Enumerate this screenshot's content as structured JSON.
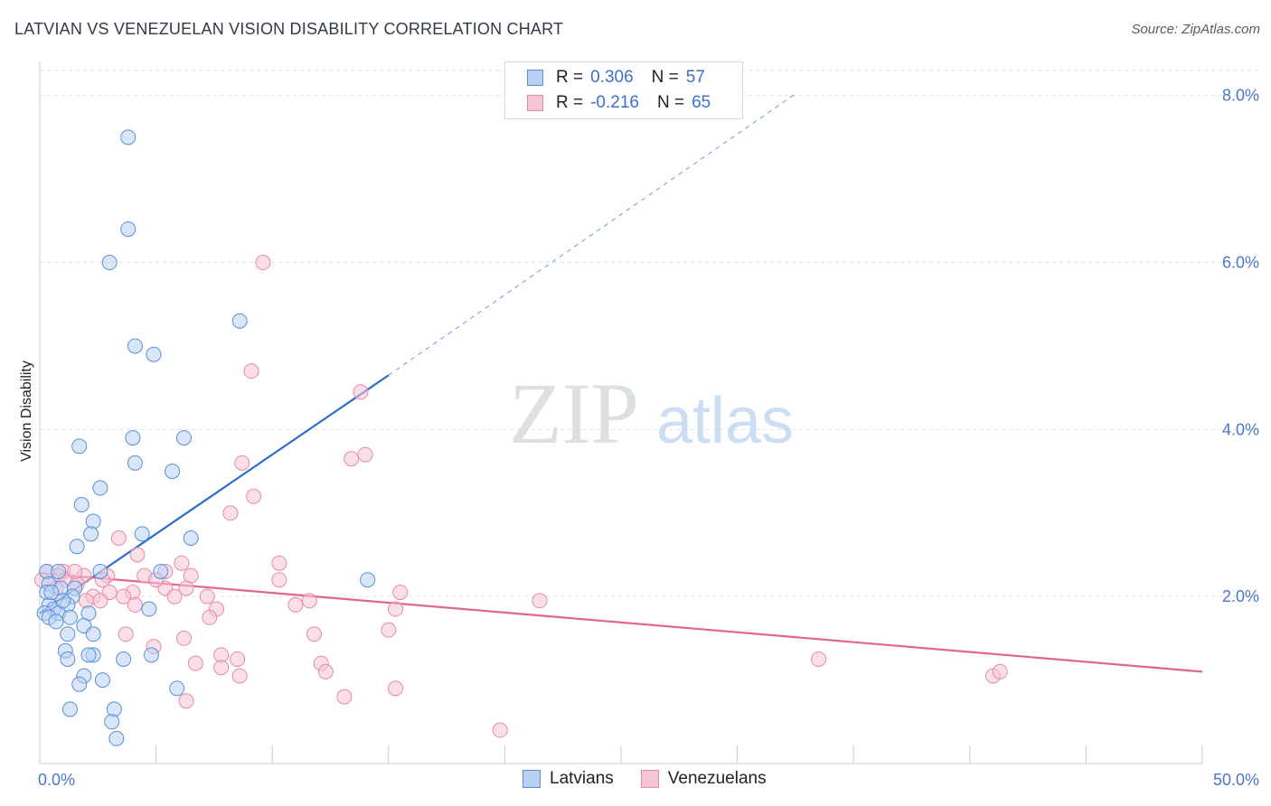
{
  "title": "LATVIAN VS VENEZUELAN VISION DISABILITY CORRELATION CHART",
  "source": "Source: ZipAtlas.com",
  "watermark": {
    "zip": "ZIP",
    "atlas": "atlas"
  },
  "legend": {
    "rows": [
      {
        "r_label": "R =",
        "r_value": "0.306",
        "n_label": "N =",
        "n_value": "57"
      },
      {
        "r_label": "R =",
        "r_value": "-0.216",
        "n_label": "N =",
        "n_value": "65"
      }
    ]
  },
  "bottom_legend": [
    "Latvians",
    "Venezuelans"
  ],
  "colors": {
    "latvian_fill": "#b8d1f3",
    "latvian_stroke": "#5b8fd6",
    "latvian_line": "#2f6fcc",
    "venezuelan_fill": "#f7c4d3",
    "venezuelan_stroke": "#e58aa8",
    "venezuelan_line": "#e06592",
    "tick_label": "#4a78c8",
    "grid": "#dde1e6"
  },
  "chart_data": {
    "type": "scatter",
    "title": "LATVIAN VS VENEZUELAN VISION DISABILITY CORRELATION CHART",
    "xlabel": "",
    "ylabel": "Vision Disability",
    "xlim": [
      0,
      50
    ],
    "ylim": [
      0,
      8.3
    ],
    "x_tick_labels": [
      "0.0%",
      "50.0%"
    ],
    "y_ticks": [
      2.0,
      4.0,
      6.0,
      8.0
    ],
    "y_tick_labels": [
      "2.0%",
      "4.0%",
      "6.0%",
      "8.0%"
    ],
    "grid": true,
    "series": [
      {
        "name": "Latvians",
        "points": [
          [
            3.8,
            7.5
          ],
          [
            3.8,
            6.4
          ],
          [
            3.0,
            6.0
          ],
          [
            8.6,
            5.3
          ],
          [
            4.1,
            5.0
          ],
          [
            4.9,
            4.9
          ],
          [
            1.7,
            3.8
          ],
          [
            4.0,
            3.9
          ],
          [
            6.2,
            3.9
          ],
          [
            4.1,
            3.6
          ],
          [
            5.7,
            3.5
          ],
          [
            2.6,
            3.3
          ],
          [
            1.8,
            3.1
          ],
          [
            2.3,
            2.9
          ],
          [
            2.2,
            2.75
          ],
          [
            4.4,
            2.75
          ],
          [
            6.5,
            2.7
          ],
          [
            1.6,
            2.6
          ],
          [
            0.3,
            2.3
          ],
          [
            0.8,
            2.3
          ],
          [
            2.6,
            2.3
          ],
          [
            5.2,
            2.3
          ],
          [
            0.4,
            2.15
          ],
          [
            0.9,
            2.1
          ],
          [
            1.5,
            2.1
          ],
          [
            0.3,
            2.05
          ],
          [
            1.4,
            2.0
          ],
          [
            0.4,
            1.9
          ],
          [
            1.2,
            1.9
          ],
          [
            0.6,
            1.85
          ],
          [
            4.7,
            1.85
          ],
          [
            0.2,
            1.8
          ],
          [
            0.8,
            1.8
          ],
          [
            2.1,
            1.8
          ],
          [
            0.4,
            1.75
          ],
          [
            1.3,
            1.75
          ],
          [
            0.7,
            1.7
          ],
          [
            1.9,
            1.65
          ],
          [
            1.2,
            1.55
          ],
          [
            2.3,
            1.55
          ],
          [
            1.1,
            1.35
          ],
          [
            1.2,
            1.25
          ],
          [
            2.3,
            1.3
          ],
          [
            2.1,
            1.3
          ],
          [
            3.6,
            1.25
          ],
          [
            4.8,
            1.3
          ],
          [
            1.9,
            1.05
          ],
          [
            1.7,
            0.95
          ],
          [
            2.7,
            1.0
          ],
          [
            5.9,
            0.9
          ],
          [
            1.3,
            0.65
          ],
          [
            3.2,
            0.65
          ],
          [
            3.1,
            0.5
          ],
          [
            3.3,
            0.3
          ],
          [
            14.1,
            2.2
          ],
          [
            0.5,
            2.05
          ],
          [
            1.0,
            1.95
          ]
        ]
      },
      {
        "name": "Venezuelans",
        "points": [
          [
            9.6,
            6.0
          ],
          [
            9.1,
            4.7
          ],
          [
            13.8,
            4.45
          ],
          [
            8.7,
            3.6
          ],
          [
            13.4,
            3.65
          ],
          [
            14.0,
            3.7
          ],
          [
            9.2,
            3.2
          ],
          [
            8.2,
            3.0
          ],
          [
            3.4,
            2.7
          ],
          [
            4.2,
            2.5
          ],
          [
            6.1,
            2.4
          ],
          [
            10.3,
            2.4
          ],
          [
            1.0,
            2.3
          ],
          [
            5.4,
            2.3
          ],
          [
            0.8,
            2.25
          ],
          [
            1.9,
            2.25
          ],
          [
            2.9,
            2.25
          ],
          [
            4.5,
            2.25
          ],
          [
            0.3,
            2.3
          ],
          [
            1.1,
            2.2
          ],
          [
            2.7,
            2.2
          ],
          [
            6.5,
            2.25
          ],
          [
            10.3,
            2.2
          ],
          [
            1.6,
            2.15
          ],
          [
            3.0,
            2.05
          ],
          [
            4.0,
            2.05
          ],
          [
            5.4,
            2.1
          ],
          [
            6.3,
            2.1
          ],
          [
            15.5,
            2.05
          ],
          [
            0.7,
            2.1
          ],
          [
            2.3,
            2.0
          ],
          [
            3.6,
            2.0
          ],
          [
            5.8,
            2.0
          ],
          [
            7.2,
            2.0
          ],
          [
            11.6,
            1.95
          ],
          [
            21.5,
            1.95
          ],
          [
            2.6,
            1.95
          ],
          [
            4.1,
            1.9
          ],
          [
            11.0,
            1.9
          ],
          [
            15.3,
            1.85
          ],
          [
            7.6,
            1.85
          ],
          [
            7.3,
            1.75
          ],
          [
            3.7,
            1.55
          ],
          [
            11.8,
            1.55
          ],
          [
            15.0,
            1.6
          ],
          [
            6.2,
            1.5
          ],
          [
            4.9,
            1.4
          ],
          [
            7.8,
            1.3
          ],
          [
            8.5,
            1.25
          ],
          [
            12.1,
            1.2
          ],
          [
            6.7,
            1.2
          ],
          [
            12.3,
            1.1
          ],
          [
            7.8,
            1.15
          ],
          [
            8.6,
            1.05
          ],
          [
            33.5,
            1.25
          ],
          [
            41.0,
            1.05
          ],
          [
            41.3,
            1.1
          ],
          [
            15.3,
            0.9
          ],
          [
            13.1,
            0.8
          ],
          [
            6.3,
            0.75
          ],
          [
            19.8,
            0.4
          ],
          [
            0.1,
            2.2
          ],
          [
            2.0,
            1.95
          ],
          [
            1.5,
            2.3
          ],
          [
            5.0,
            2.2
          ]
        ]
      }
    ],
    "trend_lines": [
      {
        "name": "Latvians",
        "x": [
          0,
          15
        ],
        "y": [
          1.8,
          4.65
        ],
        "extended_to_x": 32.5,
        "extended_y": 8.02
      },
      {
        "name": "Venezuelans",
        "x": [
          0,
          50
        ],
        "y": [
          2.28,
          1.1
        ]
      }
    ]
  }
}
